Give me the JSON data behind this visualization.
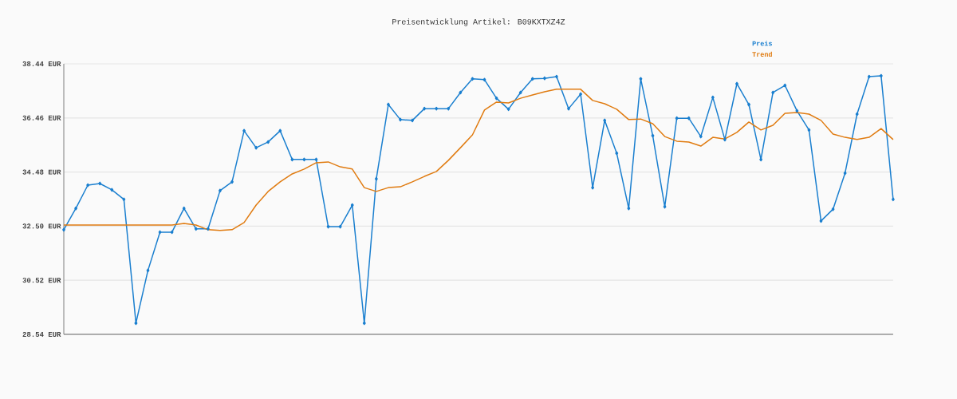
{
  "chart_data": {
    "type": "line",
    "title": "Preisentwicklung Artikel: B09KXTXZ4Z",
    "categories": [
      null,
      null,
      null,
      null,
      null,
      null,
      null,
      null,
      null,
      null,
      null,
      null,
      null,
      null,
      null,
      null,
      null,
      null,
      null,
      null,
      null,
      null,
      null,
      null,
      null,
      null,
      null,
      null,
      null,
      null,
      null,
      null,
      null,
      null,
      null,
      null,
      null,
      null,
      null,
      null,
      null,
      null,
      null,
      null,
      null,
      null,
      null,
      null,
      null,
      null,
      null,
      null,
      null,
      null,
      null,
      null,
      null,
      null,
      null,
      null,
      null,
      null,
      null,
      null,
      null,
      null,
      null,
      null,
      null,
      null
    ],
    "series": [
      {
        "name": "Preis",
        "color": "#1a7fcf",
        "marker": "diamond",
        "values": [
          32.37,
          33.15,
          34.0,
          34.06,
          33.83,
          33.48,
          28.95,
          30.88,
          32.28,
          32.28,
          33.15,
          32.4,
          32.4,
          33.8,
          34.12,
          35.99,
          35.37,
          35.58,
          35.99,
          34.94,
          34.94,
          34.94,
          32.48,
          32.48,
          33.27,
          28.95,
          34.23,
          36.95,
          36.4,
          36.37,
          36.8,
          36.8,
          36.8,
          37.39,
          37.89,
          37.86,
          37.18,
          36.78,
          37.39,
          37.89,
          37.91,
          37.97,
          36.8,
          37.33,
          33.91,
          36.37,
          35.17,
          33.15,
          37.89,
          35.81,
          33.21,
          36.45,
          36.45,
          35.78,
          37.21,
          35.67,
          37.71,
          36.95,
          34.94,
          37.39,
          37.65,
          36.72,
          36.02,
          32.69,
          33.12,
          34.44,
          36.6,
          37.97,
          38.0,
          33.48
        ]
      },
      {
        "name": "Trend",
        "color": "#e07b10",
        "marker": "none",
        "values": [
          32.54,
          32.54,
          32.54,
          32.54,
          32.54,
          32.54,
          32.54,
          32.54,
          32.54,
          32.54,
          32.6,
          32.54,
          32.37,
          32.34,
          32.37,
          32.63,
          33.27,
          33.77,
          34.12,
          34.41,
          34.59,
          34.82,
          34.85,
          34.67,
          34.59,
          33.91,
          33.77,
          33.91,
          33.94,
          34.12,
          34.32,
          34.5,
          34.91,
          35.37,
          35.84,
          36.75,
          37.04,
          37.01,
          37.18,
          37.3,
          37.42,
          37.51,
          37.51,
          37.51,
          37.1,
          36.98,
          36.78,
          36.4,
          36.42,
          36.25,
          35.78,
          35.61,
          35.58,
          35.43,
          35.75,
          35.69,
          35.93,
          36.31,
          36.02,
          36.19,
          36.63,
          36.66,
          36.6,
          36.37,
          35.87,
          35.75,
          35.67,
          35.75,
          36.07,
          35.67
        ]
      }
    ],
    "ylim": [
      28.54,
      38.44
    ],
    "yticks": [
      {
        "value": 28.54,
        "label": "28.54 EUR"
      },
      {
        "value": 30.52,
        "label": "30.52 EUR"
      },
      {
        "value": 32.5,
        "label": "32.50 EUR"
      },
      {
        "value": 34.48,
        "label": "34.48 EUR"
      },
      {
        "value": 36.46,
        "label": "36.46 EUR"
      },
      {
        "value": 38.44,
        "label": "38.44 EUR"
      }
    ],
    "grid": "y",
    "legend": "top right"
  }
}
